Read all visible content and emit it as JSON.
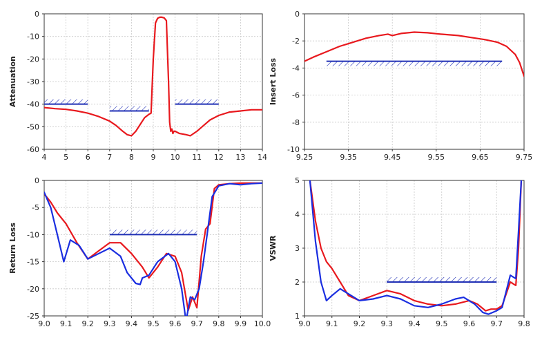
{
  "colors": {
    "measured": "#e8191e",
    "spec": "#1f2fb5",
    "simulated": "#1a2ee0",
    "grid": "#c8c8c8",
    "frame": "#333333"
  },
  "chart_data": [
    {
      "type": "line",
      "ylabel": "Attenuation",
      "xlabel": "",
      "xlim": [
        4,
        14
      ],
      "ylim": [
        -60,
        0
      ],
      "xticks": [
        "4",
        "5",
        "6",
        "7",
        "8",
        "9",
        "10",
        "11",
        "12",
        "13",
        "14"
      ],
      "yticks": [
        "0",
        "-10",
        "-20",
        "-30",
        "-40",
        "-50",
        "-60"
      ],
      "series": [
        {
          "color": "red",
          "x": [
            4.0,
            4.5,
            5.0,
            5.5,
            6.0,
            6.5,
            7.0,
            7.3,
            7.6,
            7.8,
            8.0,
            8.2,
            8.4,
            8.6,
            8.8,
            8.9,
            9.0,
            9.1,
            9.2,
            9.3,
            9.4,
            9.5,
            9.6,
            9.7,
            9.75,
            9.8,
            9.85,
            9.9,
            9.95,
            10.0,
            10.2,
            10.5,
            10.7,
            11.0,
            11.3,
            11.6,
            12.0,
            12.5,
            13.0,
            13.5,
            14.0
          ],
          "y": [
            -41.5,
            -42,
            -42.3,
            -43,
            -44,
            -45.5,
            -47.5,
            -49.5,
            -52,
            -53.5,
            -54,
            -52,
            -49,
            -46,
            -44.5,
            -44,
            -20,
            -4,
            -2,
            -1.5,
            -1.5,
            -1.8,
            -3,
            -30,
            -48,
            -52,
            -51,
            -53,
            -52,
            -52,
            -53,
            -53.5,
            -54,
            -52,
            -49.5,
            -47,
            -45,
            -43.5,
            -43,
            -42.5,
            -42.5
          ]
        }
      ],
      "spec_lines": [
        {
          "x": [
            4,
            6
          ],
          "y": -40
        },
        {
          "x": [
            7,
            8.8
          ],
          "y": -43
        },
        {
          "x": [
            10,
            12
          ],
          "y": -40
        }
      ]
    },
    {
      "type": "line",
      "ylabel": "Insert Loss",
      "xlabel": "",
      "xlim": [
        9.25,
        9.75
      ],
      "ylim": [
        -10,
        0
      ],
      "xticks": [
        "9.25",
        "9.35",
        "9.45",
        "9.55",
        "9.65",
        "9.75"
      ],
      "yticks": [
        "0",
        "-2",
        "-4",
        "-6",
        "-8",
        "-10"
      ],
      "series": [
        {
          "color": "red",
          "x": [
            9.25,
            9.27,
            9.3,
            9.33,
            9.36,
            9.39,
            9.42,
            9.44,
            9.45,
            9.47,
            9.5,
            9.53,
            9.56,
            9.6,
            9.63,
            9.66,
            9.69,
            9.71,
            9.73,
            9.74,
            9.75
          ],
          "y": [
            -3.5,
            -3.2,
            -2.8,
            -2.4,
            -2.1,
            -1.8,
            -1.6,
            -1.5,
            -1.6,
            -1.45,
            -1.35,
            -1.4,
            -1.5,
            -1.6,
            -1.75,
            -1.9,
            -2.1,
            -2.4,
            -3.0,
            -3.6,
            -4.6
          ]
        }
      ],
      "spec_lines": [
        {
          "x": [
            9.3,
            9.7
          ],
          "y": -3.5
        }
      ]
    },
    {
      "type": "line",
      "ylabel": "Return Loss",
      "xlabel": "",
      "xlim": [
        9.0,
        10.0
      ],
      "ylim": [
        -25,
        0
      ],
      "xticks": [
        "9.0",
        "9.1",
        "9.2",
        "9.3",
        "9.4",
        "9.5",
        "9.6",
        "9.7",
        "9.8",
        "9.9",
        "10.0"
      ],
      "yticks": [
        "0",
        "-5",
        "-10",
        "-15",
        "-20",
        "-25"
      ],
      "series": [
        {
          "color": "red",
          "x": [
            9.0,
            9.03,
            9.06,
            9.1,
            9.15,
            9.2,
            9.25,
            9.3,
            9.35,
            9.4,
            9.45,
            9.48,
            9.52,
            9.56,
            9.6,
            9.63,
            9.66,
            9.68,
            9.7,
            9.72,
            9.74,
            9.76,
            9.78,
            9.8,
            9.85,
            9.9,
            9.95,
            10.0
          ],
          "y": [
            -2.5,
            -4,
            -6,
            -8,
            -11.5,
            -14.5,
            -13,
            -11.5,
            -11.5,
            -13.5,
            -16,
            -18,
            -16,
            -13.5,
            -14,
            -17,
            -24,
            -21.5,
            -23.5,
            -14,
            -9,
            -8,
            -1.5,
            -0.8,
            -0.6,
            -0.5,
            -0.5,
            -0.5
          ]
        },
        {
          "color": "blue",
          "x": [
            9.0,
            9.03,
            9.06,
            9.09,
            9.12,
            9.16,
            9.2,
            9.25,
            9.3,
            9.35,
            9.38,
            9.42,
            9.44,
            9.45,
            9.48,
            9.52,
            9.57,
            9.6,
            9.63,
            9.65,
            9.67,
            9.69,
            9.71,
            9.73,
            9.75,
            9.77,
            9.8,
            9.85,
            9.9,
            9.95,
            10.0
          ],
          "y": [
            -2.2,
            -5,
            -10,
            -15,
            -11,
            -12,
            -14.5,
            -13.5,
            -12.5,
            -14,
            -17,
            -19,
            -19.2,
            -18,
            -17.5,
            -15,
            -13.5,
            -15,
            -20,
            -26,
            -21.5,
            -22,
            -20,
            -15,
            -9,
            -3,
            -1,
            -0.6,
            -0.8,
            -0.6,
            -0.5
          ]
        }
      ],
      "spec_lines": [
        {
          "x": [
            9.3,
            9.7
          ],
          "y": -10
        }
      ]
    },
    {
      "type": "line",
      "ylabel": "VSWR",
      "xlabel": "",
      "xlim": [
        9.0,
        9.8
      ],
      "ylim": [
        1,
        5
      ],
      "xticks": [
        "9.0",
        "9.1",
        "9.2",
        "9.3",
        "9.4",
        "9.5",
        "9.6",
        "9.7",
        "9.8"
      ],
      "yticks": [
        "5",
        "4",
        "3",
        "2",
        "1"
      ],
      "series": [
        {
          "color": "red",
          "x": [
            9.02,
            9.04,
            9.06,
            9.08,
            9.1,
            9.13,
            9.16,
            9.2,
            9.25,
            9.3,
            9.35,
            9.4,
            9.45,
            9.5,
            9.55,
            9.6,
            9.63,
            9.66,
            9.68,
            9.7,
            9.72,
            9.75,
            9.77,
            9.78,
            9.79
          ],
          "y": [
            5.0,
            3.8,
            3.0,
            2.6,
            2.4,
            2.0,
            1.6,
            1.45,
            1.6,
            1.75,
            1.65,
            1.45,
            1.35,
            1.3,
            1.35,
            1.45,
            1.35,
            1.15,
            1.2,
            1.2,
            1.3,
            2.0,
            1.9,
            3.0,
            5.0
          ]
        },
        {
          "color": "blue",
          "x": [
            9.02,
            9.04,
            9.06,
            9.08,
            9.1,
            9.13,
            9.17,
            9.2,
            9.25,
            9.3,
            9.35,
            9.4,
            9.45,
            9.5,
            9.55,
            9.58,
            9.62,
            9.65,
            9.67,
            9.7,
            9.72,
            9.75,
            9.77,
            9.78,
            9.79
          ],
          "y": [
            5.0,
            3.2,
            2.0,
            1.45,
            1.6,
            1.8,
            1.6,
            1.45,
            1.5,
            1.6,
            1.5,
            1.3,
            1.25,
            1.35,
            1.5,
            1.55,
            1.35,
            1.1,
            1.05,
            1.15,
            1.25,
            2.2,
            2.1,
            3.5,
            5.0
          ]
        }
      ],
      "spec_lines": [
        {
          "x": [
            9.3,
            9.7
          ],
          "y": 2.0
        }
      ]
    }
  ]
}
